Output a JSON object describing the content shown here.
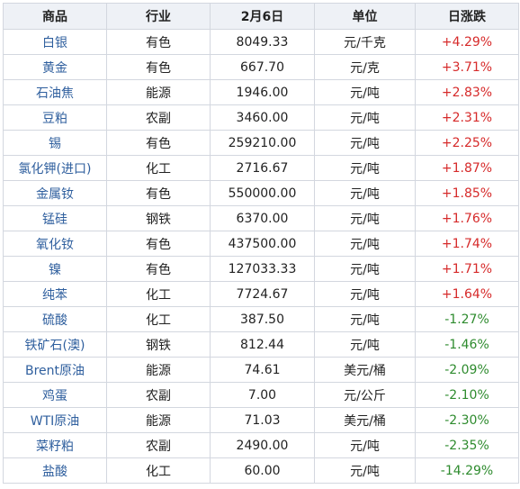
{
  "table": {
    "headers": [
      "商品",
      "行业",
      "2月6日",
      "单位",
      "日涨跌"
    ],
    "rows": [
      {
        "name": "白银",
        "sector": "有色",
        "price": "8049.33",
        "unit": "元/千克",
        "change": "+4.29%",
        "direction": "up"
      },
      {
        "name": "黄金",
        "sector": "有色",
        "price": "667.70",
        "unit": "元/克",
        "change": "+3.71%",
        "direction": "up"
      },
      {
        "name": "石油焦",
        "sector": "能源",
        "price": "1946.00",
        "unit": "元/吨",
        "change": "+2.83%",
        "direction": "up"
      },
      {
        "name": "豆粕",
        "sector": "农副",
        "price": "3460.00",
        "unit": "元/吨",
        "change": "+2.31%",
        "direction": "up"
      },
      {
        "name": "锡",
        "sector": "有色",
        "price": "259210.00",
        "unit": "元/吨",
        "change": "+2.25%",
        "direction": "up"
      },
      {
        "name": "氯化钾(进口)",
        "sector": "化工",
        "price": "2716.67",
        "unit": "元/吨",
        "change": "+1.87%",
        "direction": "up"
      },
      {
        "name": "金属钕",
        "sector": "有色",
        "price": "550000.00",
        "unit": "元/吨",
        "change": "+1.85%",
        "direction": "up"
      },
      {
        "name": "锰硅",
        "sector": "钢铁",
        "price": "6370.00",
        "unit": "元/吨",
        "change": "+1.76%",
        "direction": "up"
      },
      {
        "name": "氧化钕",
        "sector": "有色",
        "price": "437500.00",
        "unit": "元/吨",
        "change": "+1.74%",
        "direction": "up"
      },
      {
        "name": "镍",
        "sector": "有色",
        "price": "127033.33",
        "unit": "元/吨",
        "change": "+1.71%",
        "direction": "up"
      },
      {
        "name": "纯苯",
        "sector": "化工",
        "price": "7724.67",
        "unit": "元/吨",
        "change": "+1.64%",
        "direction": "up"
      },
      {
        "name": "硫酸",
        "sector": "化工",
        "price": "387.50",
        "unit": "元/吨",
        "change": "-1.27%",
        "direction": "down"
      },
      {
        "name": "铁矿石(澳)",
        "sector": "钢铁",
        "price": "812.44",
        "unit": "元/吨",
        "change": "-1.46%",
        "direction": "down"
      },
      {
        "name": "Brent原油",
        "sector": "能源",
        "price": "74.61",
        "unit": "美元/桶",
        "change": "-2.09%",
        "direction": "down"
      },
      {
        "name": "鸡蛋",
        "sector": "农副",
        "price": "7.00",
        "unit": "元/公斤",
        "change": "-2.10%",
        "direction": "down"
      },
      {
        "name": "WTI原油",
        "sector": "能源",
        "price": "71.03",
        "unit": "美元/桶",
        "change": "-2.30%",
        "direction": "down"
      },
      {
        "name": "菜籽粕",
        "sector": "农副",
        "price": "2490.00",
        "unit": "元/吨",
        "change": "-2.35%",
        "direction": "down"
      },
      {
        "name": "盐酸",
        "sector": "化工",
        "price": "60.00",
        "unit": "元/吨",
        "change": "-14.29%",
        "direction": "down"
      }
    ]
  },
  "colors": {
    "header_bg": "#eef1f6",
    "border": "#d3d7df",
    "name_text": "#2f5f9e",
    "rise": "#d62a2a",
    "fall": "#2e8b2e"
  }
}
